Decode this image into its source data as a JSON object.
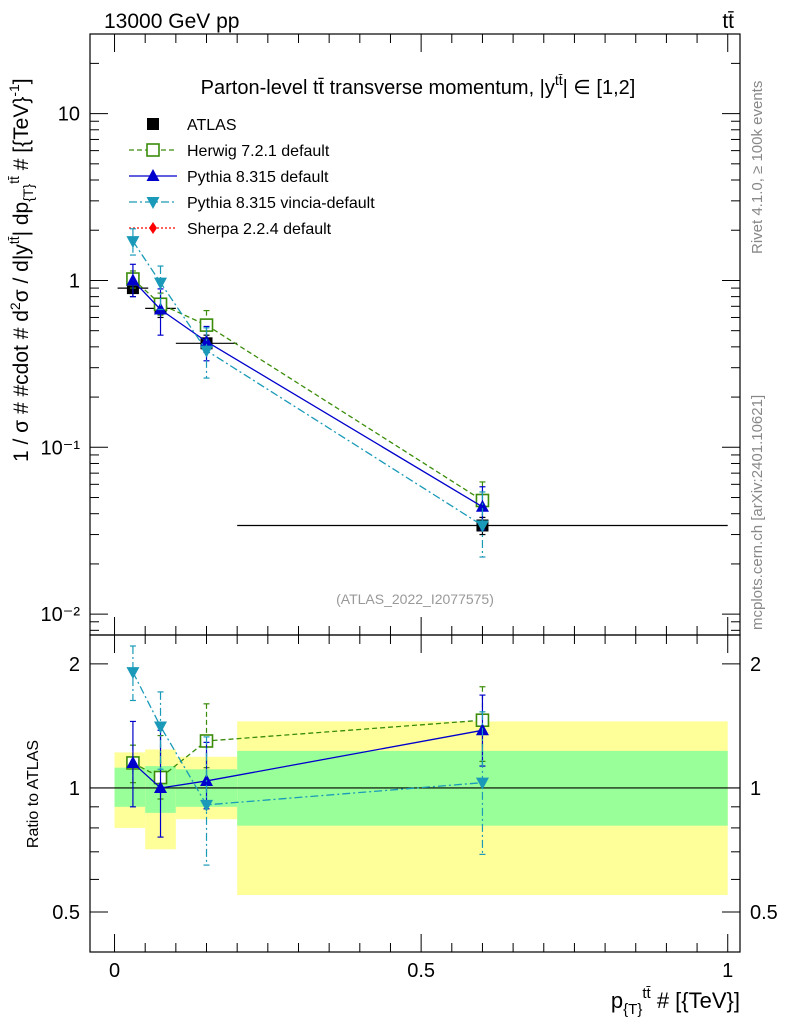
{
  "header": {
    "left": "13000 GeV pp",
    "right": "tt̄"
  },
  "title": "Parton-level tt̄ transverse momentum, |y^{tt̄}| ∈ [1,2]",
  "title_main": "Parton-level tt̄ transverse momentum, |y",
  "title_sup": "tt̄",
  "title_tail": "| ∈ [1,2]",
  "side_labels": {
    "rivet": "Rivet 4.1.0, ≥ 100k events",
    "mcplots": "mcplots.cern.ch [arXiv:2401.10621]"
  },
  "analysis_id": "(ATLAS_2022_I2077575)",
  "ylabel_main": "1 / σ # #cdot # d²σ / d|y^{tt̄}| dp_{T}^{tt̄} # [{TeV}⁻¹]",
  "ylabel_main_text": "1 / σ # #cdot # d",
  "ylabel_ratio": "Ratio to ATLAS",
  "xlabel": "p_{T}^{tt̄} # [{TeV}]",
  "xlabel_p": "p",
  "xlabel_sub": "{T}",
  "xlabel_sup": "tt̄",
  "xlabel_tail": " # [{TeV}]",
  "legend": [
    {
      "key": "atlas",
      "label": "ATLAS",
      "color": "#000000"
    },
    {
      "key": "herwig",
      "label": "Herwig 7.2.1 default",
      "color": "#3a8c0a"
    },
    {
      "key": "pythia",
      "label": "Pythia 8.315 default",
      "color": "#0000cc"
    },
    {
      "key": "vincia",
      "label": "Pythia 8.315 vincia-default",
      "color": "#1a9ab8"
    },
    {
      "key": "sherpa",
      "label": "Sherpa 2.2.4 default",
      "color": "#ff0000"
    }
  ],
  "chart_data": [
    {
      "type": "scatter",
      "panel": "main",
      "title": "Parton-level tt̄ transverse momentum, |y^{tt̄}| ∈ [1,2]",
      "xlabel": "p_{T}^{tt̄} # [{TeV}]",
      "ylabel": "1 / σ # #cdot # d²σ / d|y^{tt̄}| dp_{T}^{tt̄} # [{TeV}⁻¹]",
      "xlim": [
        -0.04,
        1.02
      ],
      "ylim": [
        0.0075,
        30
      ],
      "yscale": "log",
      "yticks": [
        {
          "value": 0.01,
          "label": "10⁻²"
        },
        {
          "value": 0.1,
          "label": "10⁻¹"
        },
        {
          "value": 1,
          "label": "1"
        },
        {
          "value": 10,
          "label": "10"
        }
      ],
      "series": [
        {
          "name": "ATLAS",
          "x": [
            0.03,
            0.075,
            0.15,
            0.6
          ],
          "values": [
            0.9,
            0.68,
            0.42,
            0.034
          ],
          "xerr": [
            0.025,
            0.025,
            0.05,
            0.4
          ],
          "err_lo": [
            0.1,
            0.08,
            0.05,
            0.004
          ],
          "err_hi": [
            0.1,
            0.08,
            0.05,
            0.004
          ]
        },
        {
          "name": "Herwig 7.2.1 default",
          "x": [
            0.03,
            0.075,
            0.15,
            0.6
          ],
          "values": [
            1.02,
            0.72,
            0.54,
            0.048
          ],
          "err_lo": [
            0.12,
            0.1,
            0.1,
            0.012
          ],
          "err_hi": [
            0.12,
            0.12,
            0.12,
            0.014
          ]
        },
        {
          "name": "Pythia 8.315 default",
          "x": [
            0.03,
            0.075,
            0.15,
            0.6
          ],
          "values": [
            1.0,
            0.67,
            0.43,
            0.044
          ],
          "err_lo": [
            0.2,
            0.2,
            0.1,
            0.012
          ],
          "err_hi": [
            0.25,
            0.22,
            0.1,
            0.014
          ]
        },
        {
          "name": "Pythia 8.315 vincia-default",
          "x": [
            0.03,
            0.075,
            0.15,
            0.6
          ],
          "values": [
            1.72,
            0.97,
            0.38,
            0.034
          ],
          "err_lo": [
            0.3,
            0.3,
            0.12,
            0.012
          ],
          "err_hi": [
            0.32,
            0.25,
            0.14,
            0.02
          ]
        }
      ]
    },
    {
      "type": "scatter",
      "panel": "ratio",
      "ylabel": "Ratio to ATLAS",
      "xlabel": "p_{T}^{tt̄} # [{TeV}]",
      "xlim": [
        -0.04,
        1.02
      ],
      "ylim": [
        0.4,
        2.35
      ],
      "yscale": "log",
      "xticks": [
        {
          "value": 0,
          "label": "0"
        },
        {
          "value": 0.5,
          "label": "0.5"
        },
        {
          "value": 1,
          "label": "1"
        }
      ],
      "yticks": [
        {
          "value": 0.5,
          "label": "0.5"
        },
        {
          "value": 1,
          "label": "1"
        },
        {
          "value": 2,
          "label": "2"
        }
      ],
      "bands": [
        {
          "x0": 0.0,
          "x1": 0.05,
          "stat_lo": 0.9,
          "stat_hi": 1.12,
          "tot_lo": 0.8,
          "tot_hi": 1.22
        },
        {
          "x0": 0.05,
          "x1": 0.1,
          "stat_lo": 0.87,
          "stat_hi": 1.13,
          "tot_lo": 0.71,
          "tot_hi": 1.24
        },
        {
          "x0": 0.1,
          "x1": 0.2,
          "stat_lo": 0.9,
          "stat_hi": 1.11,
          "tot_lo": 0.84,
          "tot_hi": 1.19
        },
        {
          "x0": 0.2,
          "x1": 1.0,
          "stat_lo": 0.81,
          "stat_hi": 1.23,
          "tot_lo": 0.55,
          "tot_hi": 1.45
        }
      ],
      "series": [
        {
          "name": "Herwig 7.2.1 default",
          "x": [
            0.03,
            0.075,
            0.15,
            0.6
          ],
          "values": [
            1.15,
            1.06,
            1.3,
            1.46
          ],
          "err_lo": [
            0.12,
            0.12,
            0.18,
            0.3
          ],
          "err_hi": [
            0.12,
            0.28,
            0.3,
            0.3
          ]
        },
        {
          "name": "Pythia 8.315 default",
          "x": [
            0.03,
            0.075,
            0.15,
            0.6
          ],
          "values": [
            1.15,
            1.0,
            1.04,
            1.38
          ],
          "err_lo": [
            0.25,
            0.24,
            0.15,
            0.25
          ],
          "err_hi": [
            0.3,
            0.38,
            0.25,
            0.3
          ]
        },
        {
          "name": "Pythia 8.315 vincia-default",
          "x": [
            0.03,
            0.075,
            0.15,
            0.6
          ],
          "values": [
            1.91,
            1.41,
            0.91,
            1.03
          ],
          "err_lo": [
            0.28,
            0.3,
            0.26,
            0.34
          ],
          "err_hi": [
            0.3,
            0.3,
            0.42,
            0.5
          ]
        }
      ]
    }
  ]
}
